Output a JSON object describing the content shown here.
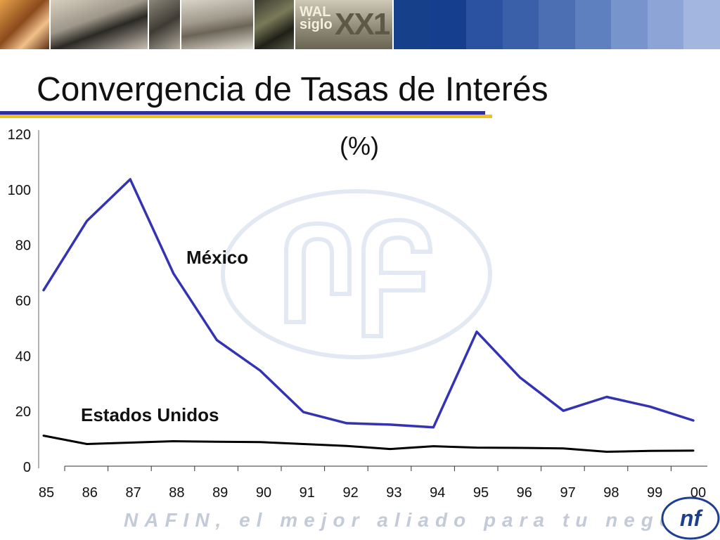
{
  "header": {
    "logo_top": "WAL",
    "logo_bottom": "siglo",
    "logo_big": "XX1",
    "blue_blocks": [
      "#17408b",
      "#163e8e",
      "#2a52a0",
      "#3a60aa",
      "#4c6fb4",
      "#5f80bf",
      "#7794cc",
      "#8ca4d6",
      "#a3b6df"
    ]
  },
  "slide": {
    "title": "Convergencia de Tasas de Interés"
  },
  "chart_data": {
    "type": "line",
    "title": "(%)",
    "categories": [
      "85",
      "86",
      "87",
      "88",
      "89",
      "90",
      "91",
      "92",
      "93",
      "94",
      "95",
      "96",
      "97",
      "98",
      "99",
      "00"
    ],
    "ylim": [
      0,
      120
    ],
    "yticks": [
      0,
      20,
      40,
      60,
      80,
      100,
      120
    ],
    "grid": false,
    "series": [
      {
        "name": "México",
        "color": "#3333b3",
        "values": [
          63.5,
          88.5,
          103.5,
          69.5,
          45.5,
          34.5,
          19.5,
          15.5,
          15,
          14,
          48.5,
          32,
          20,
          25,
          21.5,
          16.5
        ]
      },
      {
        "name": "Estados Unidos",
        "color": "#000000",
        "values": [
          11,
          8,
          8.5,
          9,
          8.8,
          8.7,
          8,
          7.3,
          6.2,
          7.2,
          6.7,
          6.6,
          6.4,
          5.2,
          5.5,
          5.6
        ]
      }
    ]
  },
  "footer": {
    "slogan": "NAFIN, el mejor aliado para tu negocio",
    "logo_text": "nf"
  }
}
